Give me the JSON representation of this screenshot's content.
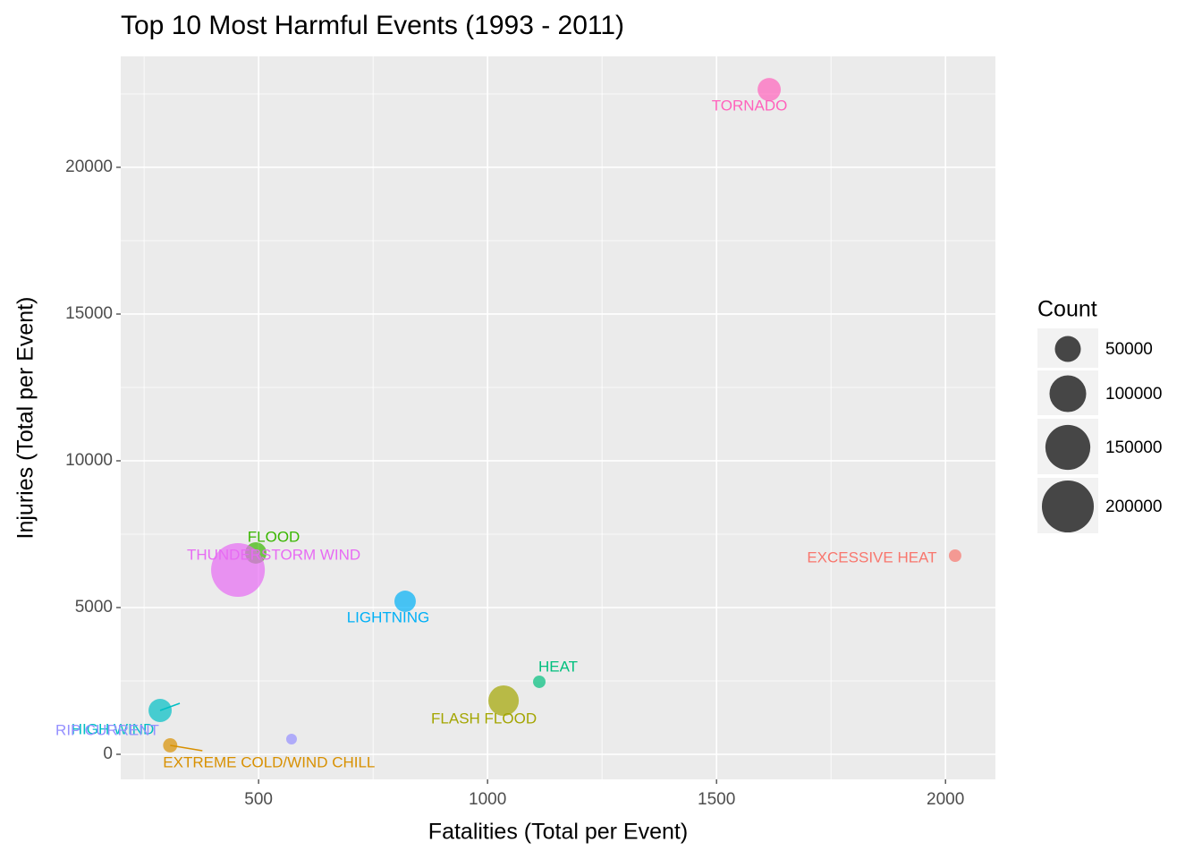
{
  "chart_data": {
    "type": "scatter",
    "title": "Top 10 Most Harmful Events (1993 - 2011)",
    "x_label": "Fatalities (Total per Event)",
    "y_label": "Injuries (Total per Event)",
    "xlim": [
      199,
      2109
    ],
    "xticks": [
      500,
      1000,
      1500,
      2000
    ],
    "ylim": [
      -854,
      23780
    ],
    "yticks": [
      0,
      5000,
      10000,
      15000,
      20000
    ],
    "grid": true,
    "points": [
      {
        "name": "EXCESSIVE HEAT",
        "color": "#F8766D",
        "x": 2021,
        "y": 6768,
        "size": 11600
      },
      {
        "name": "EXTREME COLD/WIND CHILL",
        "color": "#D89000",
        "x": 307,
        "y": 305,
        "size": 15000
      },
      {
        "name": "FLASH FLOOD",
        "color": "#A3A500",
        "x": 1035,
        "y": 1829,
        "size": 69000
      },
      {
        "name": "FLOOD",
        "color": "#39B600",
        "x": 494,
        "y": 6860,
        "size": 34000
      },
      {
        "name": "HEAT",
        "color": "#00BF7D",
        "x": 1113,
        "y": 2470,
        "size": 11600
      },
      {
        "name": "HIGH WIND",
        "color": "#00BFC4",
        "x": 285,
        "y": 1494,
        "size": 40000
      },
      {
        "name": "LIGHTNING",
        "color": "#00B0F6",
        "x": 820,
        "y": 5213,
        "size": 34000
      },
      {
        "name": "RIP CURRENT",
        "color": "#9590FF",
        "x": 572,
        "y": 518,
        "size": 8500
      },
      {
        "name": "THUNDERSTORM WIND",
        "color": "#E76BF3",
        "x": 455,
        "y": 6280,
        "size": 214000
      },
      {
        "name": "TORNADO",
        "color": "#FF62BC",
        "x": 1615,
        "y": 22650,
        "size": 40000
      }
    ],
    "size_legend": {
      "title": "Count",
      "values": [
        50000,
        100000,
        150000,
        200000
      ]
    }
  }
}
